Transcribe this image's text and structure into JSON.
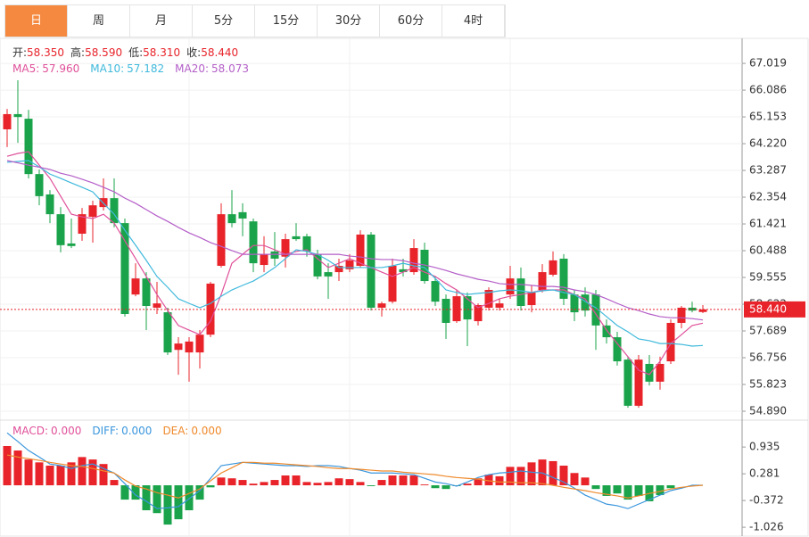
{
  "tabs": [
    "日",
    "周",
    "月",
    "5分",
    "15分",
    "30分",
    "60分",
    "4时"
  ],
  "active_tab": 0,
  "info": [
    {
      "label": "开:",
      "value": "58.350"
    },
    {
      "label": "高:",
      "value": "58.590"
    },
    {
      "label": "低:",
      "value": "58.310"
    },
    {
      "label": "收:",
      "value": "58.440"
    }
  ],
  "chart_data": [
    {
      "type": "candlestick",
      "up_color": "#e8232a",
      "down_color": "#1aa34a",
      "grid": true,
      "ylim": [
        54.61,
        67.83
      ],
      "yticks": [
        67.019,
        66.086,
        65.153,
        {
          "value": 64.22,
          "label": "64.220"
        },
        63.287,
        62.354,
        61.421,
        60.488,
        59.555,
        58.622,
        57.689,
        56.756,
        55.823,
        {
          "value": 54.89,
          "label": "54.890"
        }
      ],
      "last_label": "58.440",
      "open": [
        64.72,
        65.25,
        65.09,
        63.16,
        62.45,
        61.76,
        60.74,
        61.08,
        61.67,
        62.01,
        62.32,
        61.45,
        58.96,
        59.52,
        58.5,
        58.34,
        57.03,
        56.94,
        56.94,
        57.56,
        59.96,
        61.76,
        61.83,
        61.51,
        59.99,
        60.46,
        60.28,
        60.99,
        60.99,
        60.37,
        59.74,
        59.74,
        59.84,
        59.96,
        61.05,
        58.5,
        58.71,
        59.84,
        59.74,
        60.52,
        59.43,
        58.81,
        58.03,
        58.9,
        58.03,
        58.5,
        58.5,
        58.96,
        59.52,
        58.59,
        59.12,
        59.65,
        60.21,
        58.96,
        58.96,
        58.96,
        57.88,
        57.47,
        56.69,
        55.08,
        56.54,
        55.92,
        56.63,
        57.97,
        58.5,
        58.35
      ],
      "high": [
        65.43,
        66.43,
        65.4,
        63.32,
        62.6,
        62.01,
        61.61,
        61.98,
        62.23,
        63.01,
        63.01,
        61.61,
        60.05,
        59.74,
        59.4,
        58.5,
        57.47,
        57.47,
        57.72,
        59.4,
        62.14,
        62.6,
        62.14,
        61.61,
        60.99,
        61.14,
        61.08,
        61.45,
        61.08,
        60.52,
        60.05,
        60.21,
        60.37,
        61.2,
        61.14,
        58.71,
        60.21,
        60.21,
        60.89,
        60.77,
        59.59,
        58.96,
        59.12,
        59.03,
        58.65,
        59.21,
        58.81,
        59.96,
        59.9,
        59.28,
        60.02,
        60.46,
        60.37,
        59.12,
        59.21,
        59.12,
        58.09,
        57.66,
        56.79,
        56.85,
        56.85,
        56.79,
        58.09,
        58.56,
        58.71,
        58.59
      ],
      "low": [
        64.1,
        64.25,
        63.01,
        62.07,
        61.45,
        60.43,
        60.58,
        60.83,
        60.77,
        61.89,
        61.3,
        58.19,
        58.9,
        57.72,
        58.28,
        56.85,
        56.16,
        55.92,
        56.38,
        57.47,
        59.9,
        61.3,
        60.99,
        59.74,
        59.74,
        59.96,
        59.9,
        60.83,
        60.28,
        59.49,
        58.81,
        59.43,
        59.74,
        59.9,
        58.4,
        58.19,
        58.65,
        59.59,
        59.65,
        59.34,
        58.56,
        57.41,
        57.97,
        57.16,
        57.88,
        58.4,
        58.4,
        58.81,
        58.4,
        58.34,
        59.03,
        59.59,
        58.59,
        58.03,
        58.19,
        57.03,
        57.25,
        56.48,
        55.01,
        55.01,
        55.79,
        55.64,
        56.54,
        57.78,
        58.34,
        58.31
      ],
      "close": [
        65.25,
        65.15,
        63.16,
        62.39,
        61.76,
        60.68,
        60.65,
        61.76,
        62.07,
        62.32,
        61.45,
        58.28,
        59.52,
        58.56,
        58.65,
        56.94,
        57.25,
        57.32,
        57.56,
        59.34,
        61.76,
        61.45,
        61.61,
        60.05,
        60.37,
        60.21,
        60.89,
        60.89,
        60.46,
        59.59,
        59.59,
        59.96,
        60.15,
        61.05,
        58.5,
        58.65,
        59.96,
        59.74,
        60.58,
        59.43,
        58.71,
        57.97,
        58.9,
        58.09,
        58.59,
        59.12,
        58.65,
        59.52,
        58.56,
        59.03,
        59.74,
        60.15,
        58.81,
        58.34,
        58.4,
        57.88,
        57.47,
        56.63,
        55.08,
        56.69,
        55.92,
        56.54,
        57.97,
        58.5,
        58.4,
        58.44
      ],
      "series": [
        {
          "name": "MA5:",
          "color": "#e0509a",
          "last_label": "57.960",
          "values": [
            63.78,
            63.88,
            63.94,
            63.47,
            63.01,
            62.39,
            61.76,
            61.67,
            61.61,
            61.76,
            61.45,
            60.83,
            60.21,
            59.59,
            58.96,
            58.4,
            57.88,
            57.72,
            57.56,
            58.03,
            58.96,
            60.05,
            60.36,
            60.67,
            60.67,
            60.52,
            60.36,
            60.46,
            60.52,
            60.21,
            59.9,
            60.05,
            60.21,
            60.05,
            59.9,
            59.74,
            59.59,
            59.74,
            59.9,
            59.74,
            59.59,
            59.34,
            59.12,
            58.81,
            58.5,
            58.65,
            58.81,
            58.9,
            58.96,
            59.03,
            59.12,
            59.12,
            59.12,
            58.96,
            58.81,
            58.28,
            57.72,
            57.25,
            56.79,
            56.32,
            56.17,
            56.63,
            57.25,
            57.56,
            57.88,
            57.96
          ]
        },
        {
          "name": "MA10:",
          "color": "#3fb9dc",
          "last_label": "57.182",
          "values": [
            63.57,
            63.6,
            63.63,
            63.41,
            63.16,
            63.01,
            62.85,
            62.7,
            62.54,
            62.14,
            61.76,
            61.2,
            60.68,
            60.15,
            59.59,
            59.21,
            58.81,
            58.65,
            58.5,
            58.65,
            58.9,
            59.12,
            59.28,
            59.43,
            59.65,
            59.9,
            60.21,
            60.52,
            60.46,
            60.36,
            60.15,
            59.9,
            59.9,
            59.9,
            59.9,
            59.9,
            59.96,
            60.05,
            59.96,
            59.9,
            59.52,
            59.12,
            59.03,
            58.96,
            59.0,
            59.03,
            59.09,
            59.12,
            59.09,
            59.03,
            59.09,
            59.12,
            59.03,
            58.96,
            58.72,
            58.5,
            58.19,
            57.88,
            57.66,
            57.41,
            57.35,
            57.25,
            57.25,
            57.22,
            57.16,
            57.182
          ]
        },
        {
          "name": "MA20:",
          "color": "#b45ec8",
          "last_label": "58.073",
          "values": [
            63.63,
            63.55,
            63.47,
            63.4,
            63.32,
            63.19,
            63.1,
            62.98,
            62.85,
            62.7,
            62.54,
            62.32,
            62.14,
            61.92,
            61.7,
            61.51,
            61.3,
            61.11,
            60.95,
            60.77,
            60.64,
            60.49,
            60.36,
            60.36,
            60.36,
            60.36,
            60.36,
            60.36,
            60.36,
            60.36,
            60.36,
            60.36,
            60.3,
            60.27,
            60.21,
            60.18,
            60.18,
            60.14,
            60.05,
            59.99,
            59.9,
            59.8,
            59.68,
            59.59,
            59.49,
            59.43,
            59.34,
            59.31,
            59.31,
            59.28,
            59.24,
            59.24,
            59.21,
            59.12,
            59.06,
            58.96,
            58.81,
            58.65,
            58.5,
            58.4,
            58.28,
            58.19,
            58.15,
            58.15,
            58.12,
            58.073
          ]
        }
      ]
    },
    {
      "type": "macd",
      "up_color": "#e8232a",
      "down_color": "#1aa34a",
      "ylim": [
        -1.22,
        1.57
      ],
      "yticks": [
        0.935,
        0.281,
        -0.372,
        -1.026
      ],
      "series": [
        {
          "name": "MACD:",
          "style": "histogram",
          "color": "#e0509a",
          "last_label": "0.000",
          "values": [
            0.96,
            0.85,
            0.63,
            0.56,
            0.48,
            0.48,
            0.56,
            0.69,
            0.63,
            0.52,
            0.13,
            -0.35,
            -0.35,
            -0.61,
            -0.68,
            -0.96,
            -0.83,
            -0.61,
            -0.35,
            -0.05,
            0.19,
            0.17,
            0.13,
            0.04,
            0.08,
            0.13,
            0.24,
            0.24,
            0.08,
            0.06,
            0.08,
            0.17,
            0.15,
            0.08,
            -0.02,
            0.13,
            0.24,
            0.24,
            0.24,
            0.02,
            -0.07,
            -0.09,
            -0.02,
            0.04,
            0.17,
            0.26,
            0.22,
            0.45,
            0.45,
            0.56,
            0.63,
            0.59,
            0.48,
            0.3,
            0.19,
            -0.09,
            -0.26,
            -0.2,
            -0.35,
            -0.26,
            -0.39,
            -0.24,
            -0.07,
            0,
            0,
            0
          ]
        },
        {
          "name": "DIFF:",
          "style": "line",
          "color": "#3a96dd",
          "last_label": "0.000",
          "values": [
            1.28,
            1.07,
            0.85,
            0.69,
            0.52,
            0.48,
            0.41,
            0.48,
            0.52,
            0.41,
            0.3,
            0.04,
            -0.24,
            -0.39,
            -0.57,
            -0.55,
            -0.52,
            -0.33,
            -0.13,
            0.17,
            0.48,
            0.52,
            0.56,
            0.54,
            0.52,
            0.5,
            0.48,
            0.48,
            0.46,
            0.48,
            0.48,
            0.46,
            0.41,
            0.37,
            0.3,
            0.3,
            0.3,
            0.28,
            0.26,
            0.17,
            0.08,
            0.04,
            -0.02,
            0.08,
            0.19,
            0.26,
            0.3,
            0.32,
            0.35,
            0.32,
            0.3,
            0.19,
            0.08,
            -0.07,
            -0.24,
            -0.35,
            -0.46,
            -0.5,
            -0.57,
            -0.46,
            -0.35,
            -0.24,
            -0.13,
            -0.07,
            0,
            0
          ]
        },
        {
          "name": "DEA:",
          "style": "line",
          "color": "#ef8a2c",
          "last_label": "0.000",
          "values": [
            0.74,
            0.69,
            0.65,
            0.61,
            0.56,
            0.52,
            0.48,
            0.46,
            0.41,
            0.35,
            0.3,
            0.13,
            -0.02,
            -0.09,
            -0.18,
            -0.24,
            -0.31,
            -0.2,
            -0.09,
            0.11,
            0.3,
            0.43,
            0.56,
            0.56,
            0.54,
            0.54,
            0.52,
            0.5,
            0.48,
            0.46,
            0.43,
            0.41,
            0.41,
            0.39,
            0.37,
            0.35,
            0.35,
            0.32,
            0.3,
            0.28,
            0.26,
            0.22,
            0.19,
            0.17,
            0.15,
            0.11,
            0.08,
            0.08,
            0.06,
            0.06,
            0.04,
            0.0,
            -0.05,
            -0.09,
            -0.13,
            -0.18,
            -0.22,
            -0.26,
            -0.31,
            -0.26,
            -0.2,
            -0.15,
            -0.09,
            -0.05,
            -0.02,
            0.0
          ]
        }
      ]
    }
  ]
}
